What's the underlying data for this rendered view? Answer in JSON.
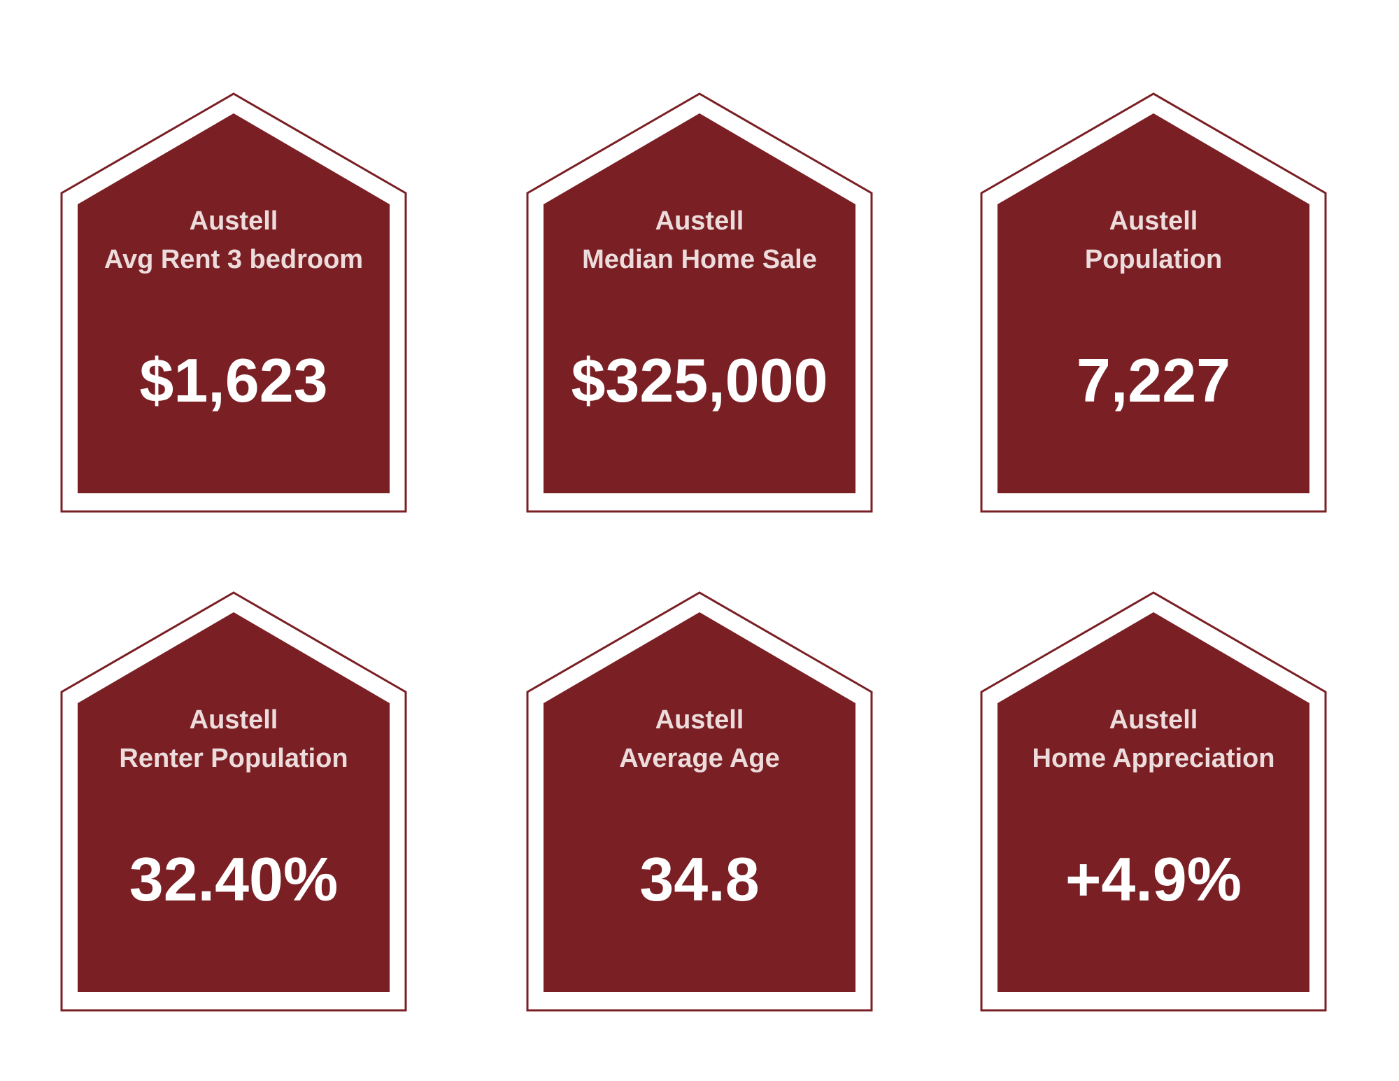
{
  "cards": [
    {
      "place": "Austell",
      "label": "Avg Rent 3 bedroom",
      "value": "$1,623"
    },
    {
      "place": "Austell",
      "label": "Median Home Sale",
      "value": "$325,000"
    },
    {
      "place": "Austell",
      "label": "Population",
      "value": "7,227"
    },
    {
      "place": "Austell",
      "label": "Renter Population",
      "value": "32.40%"
    },
    {
      "place": "Austell",
      "label": "Average Age",
      "value": "34.8"
    },
    {
      "place": "Austell",
      "label": "Home Appreciation",
      "value": "+4.9%"
    }
  ]
}
